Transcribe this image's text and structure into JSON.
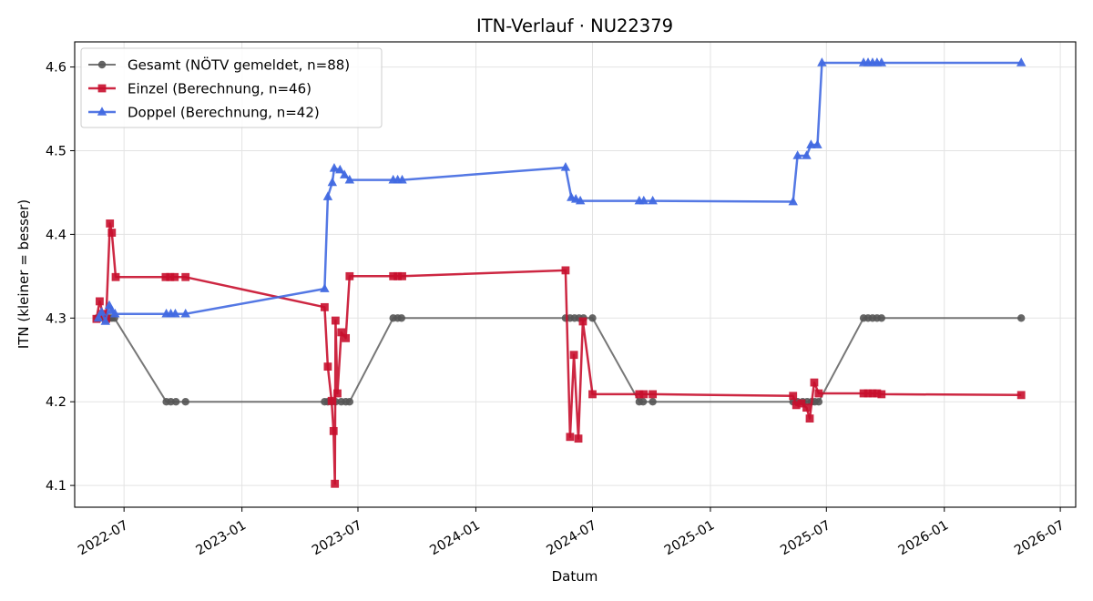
{
  "chart_data": {
    "type": "line",
    "title": "ITN-Verlauf · NU22379",
    "xlabel": "Datum",
    "ylabel": "ITN  (kleiner = besser)",
    "xlim": [
      "2022-04-15",
      "2026-07-25"
    ],
    "ylim": [
      4.074,
      4.63
    ],
    "x_ticks": [
      "2022-07",
      "2023-01",
      "2023-07",
      "2024-01",
      "2024-07",
      "2025-01",
      "2025-07",
      "2026-01",
      "2026-07"
    ],
    "y_ticks": [
      4.1,
      4.2,
      4.3,
      4.4,
      4.5,
      4.6
    ],
    "y_tick_labels": [
      "4.1",
      "4.2",
      "4.3",
      "4.4",
      "4.5",
      "4.6"
    ],
    "grid": true,
    "legend_position": "upper-left",
    "series": [
      {
        "name": "Gesamt (NÖTV gemeldet, n=88)",
        "color": "#555555",
        "marker": "circle",
        "points": [
          [
            "2022-05-20",
            4.3
          ],
          [
            "2022-05-25",
            4.3
          ],
          [
            "2022-05-31",
            4.3
          ],
          [
            "2022-06-05",
            4.3
          ],
          [
            "2022-06-08",
            4.3
          ],
          [
            "2022-06-12",
            4.3
          ],
          [
            "2022-06-16",
            4.3
          ],
          [
            "2022-09-05",
            4.2
          ],
          [
            "2022-09-12",
            4.2
          ],
          [
            "2022-09-20",
            4.2
          ],
          [
            "2022-10-05",
            4.2
          ],
          [
            "2023-05-10",
            4.2
          ],
          [
            "2023-05-15",
            4.2
          ],
          [
            "2023-05-21",
            4.2
          ],
          [
            "2023-05-27",
            4.2
          ],
          [
            "2023-06-05",
            4.2
          ],
          [
            "2023-06-12",
            4.2
          ],
          [
            "2023-06-18",
            4.2
          ],
          [
            "2023-08-25",
            4.3
          ],
          [
            "2023-09-01",
            4.3
          ],
          [
            "2023-09-07",
            4.3
          ],
          [
            "2024-05-20",
            4.3
          ],
          [
            "2024-05-27",
            4.3
          ],
          [
            "2024-06-03",
            4.3
          ],
          [
            "2024-06-10",
            4.3
          ],
          [
            "2024-06-17",
            4.3
          ],
          [
            "2024-07-01",
            4.3
          ],
          [
            "2024-09-12",
            4.2
          ],
          [
            "2024-09-18",
            4.2
          ],
          [
            "2024-10-03",
            4.2
          ],
          [
            "2025-05-10",
            4.2
          ],
          [
            "2025-05-17",
            4.2
          ],
          [
            "2025-05-25",
            4.2
          ],
          [
            "2025-06-01",
            4.2
          ],
          [
            "2025-06-08",
            4.2
          ],
          [
            "2025-06-13",
            4.2
          ],
          [
            "2025-06-19",
            4.2
          ],
          [
            "2025-08-28",
            4.3
          ],
          [
            "2025-09-04",
            4.3
          ],
          [
            "2025-09-11",
            4.3
          ],
          [
            "2025-09-18",
            4.3
          ],
          [
            "2025-09-25",
            4.3
          ],
          [
            "2026-05-01",
            4.3
          ]
        ]
      },
      {
        "name": "Einzel (Berechnung, n=46)",
        "color": "#c8102e",
        "marker": "square",
        "points": [
          [
            "2022-05-19",
            4.299
          ],
          [
            "2022-05-24",
            4.32
          ],
          [
            "2022-05-29",
            4.305
          ],
          [
            "2022-06-03",
            4.299
          ],
          [
            "2022-06-09",
            4.413
          ],
          [
            "2022-06-12",
            4.402
          ],
          [
            "2022-06-18",
            4.349
          ],
          [
            "2022-09-04",
            4.349
          ],
          [
            "2022-09-11",
            4.349
          ],
          [
            "2022-09-18",
            4.349
          ],
          [
            "2022-10-05",
            4.349
          ],
          [
            "2023-05-10",
            4.313
          ],
          [
            "2023-05-15",
            4.242
          ],
          [
            "2023-05-21",
            4.201
          ],
          [
            "2023-05-24",
            4.165
          ],
          [
            "2023-05-26",
            4.102
          ],
          [
            "2023-05-27",
            4.297
          ],
          [
            "2023-05-30",
            4.21
          ],
          [
            "2023-06-05",
            4.283
          ],
          [
            "2023-06-12",
            4.276
          ],
          [
            "2023-06-18",
            4.35
          ],
          [
            "2023-08-25",
            4.35
          ],
          [
            "2023-09-01",
            4.35
          ],
          [
            "2023-09-08",
            4.35
          ],
          [
            "2024-05-20",
            4.357
          ],
          [
            "2024-05-27",
            4.158
          ],
          [
            "2024-06-02",
            4.256
          ],
          [
            "2024-06-09",
            4.156
          ],
          [
            "2024-06-16",
            4.296
          ],
          [
            "2024-07-01",
            4.209
          ],
          [
            "2024-09-12",
            4.209
          ],
          [
            "2024-09-19",
            4.209
          ],
          [
            "2024-10-03",
            4.209
          ],
          [
            "2025-05-10",
            4.207
          ],
          [
            "2025-05-15",
            4.196
          ],
          [
            "2025-05-23",
            4.198
          ],
          [
            "2025-05-31",
            4.193
          ],
          [
            "2025-06-05",
            4.18
          ],
          [
            "2025-06-12",
            4.223
          ],
          [
            "2025-06-19",
            4.21
          ],
          [
            "2025-08-28",
            4.21
          ],
          [
            "2025-09-04",
            4.21
          ],
          [
            "2025-09-11",
            4.21
          ],
          [
            "2025-09-18",
            4.21
          ],
          [
            "2025-09-25",
            4.209
          ],
          [
            "2026-05-01",
            4.208
          ]
        ]
      },
      {
        "name": "Doppel (Berechnung, n=42)",
        "color": "#4169e1",
        "marker": "triangle",
        "points": [
          [
            "2022-05-22",
            4.3
          ],
          [
            "2022-05-27",
            4.307
          ],
          [
            "2022-06-02",
            4.296
          ],
          [
            "2022-06-08",
            4.315
          ],
          [
            "2022-06-12",
            4.309
          ],
          [
            "2022-06-17",
            4.305
          ],
          [
            "2022-09-05",
            4.305
          ],
          [
            "2022-09-12",
            4.305
          ],
          [
            "2022-09-19",
            4.305
          ],
          [
            "2022-10-05",
            4.305
          ],
          [
            "2023-05-10",
            4.335
          ],
          [
            "2023-05-15",
            4.445
          ],
          [
            "2023-05-22",
            4.462
          ],
          [
            "2023-05-25",
            4.479
          ],
          [
            "2023-06-03",
            4.477
          ],
          [
            "2023-06-10",
            4.471
          ],
          [
            "2023-06-18",
            4.465
          ],
          [
            "2023-08-25",
            4.465
          ],
          [
            "2023-09-01",
            4.465
          ],
          [
            "2023-09-08",
            4.465
          ],
          [
            "2024-05-20",
            4.48
          ],
          [
            "2024-05-29",
            4.444
          ],
          [
            "2024-06-05",
            4.442
          ],
          [
            "2024-06-12",
            4.44
          ],
          [
            "2024-09-12",
            4.44
          ],
          [
            "2024-09-19",
            4.44
          ],
          [
            "2024-10-03",
            4.44
          ],
          [
            "2025-05-10",
            4.439
          ],
          [
            "2025-05-17",
            4.494
          ],
          [
            "2025-05-31",
            4.494
          ],
          [
            "2025-06-07",
            4.507
          ],
          [
            "2025-06-17",
            4.507
          ],
          [
            "2025-06-24",
            4.605
          ],
          [
            "2025-08-28",
            4.605
          ],
          [
            "2025-09-04",
            4.605
          ],
          [
            "2025-09-11",
            4.605
          ],
          [
            "2025-09-18",
            4.605
          ],
          [
            "2025-09-25",
            4.605
          ],
          [
            "2026-05-01",
            4.605
          ]
        ]
      }
    ]
  }
}
